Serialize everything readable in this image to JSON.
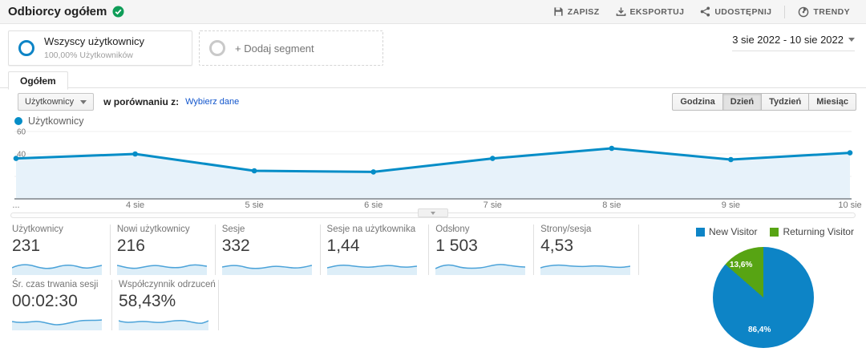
{
  "colors": {
    "accent_blue": "#058dc7",
    "pie_blue": "#0d84c6",
    "pie_green": "#57a413",
    "badge_green": "#0f9d58"
  },
  "header": {
    "title": "Odbiorcy ogółem",
    "badge": "verified-check",
    "save": "ZAPISZ",
    "export": "EKSPORTUJ",
    "share": "UDOSTĘPNIJ",
    "trends": "TRENDY"
  },
  "segments": {
    "all_users": {
      "title": "Wszyscy użytkownicy",
      "subtitle": "100,00% Użytkowników"
    },
    "add_segment": {
      "label": "+ Dodaj segment"
    }
  },
  "date_range": {
    "label": "3 sie 2022 - 10 sie 2022"
  },
  "tabs": {
    "overview": "Ogółem"
  },
  "controls": {
    "metric_dropdown": "Użytkownicy",
    "compare_label": "w porównaniu z:",
    "compare_link": "Wybierz dane",
    "granularity": [
      "Godzina",
      "Dzień",
      "Tydzień",
      "Miesiąc"
    ],
    "granularity_selected": "Dzień"
  },
  "chart_legend": {
    "series": "Użytkownicy"
  },
  "chart_data": [
    {
      "type": "line",
      "title": "Użytkownicy",
      "color": "#058dc7",
      "fill": "#e7f2fa",
      "x_labels": [
        "...",
        "4 sie",
        "5 sie",
        "6 sie",
        "7 sie",
        "8 sie",
        "9 sie",
        "10 sie"
      ],
      "values": [
        36,
        40,
        25,
        24,
        36,
        45,
        35,
        41
      ],
      "yticks": [
        20,
        40,
        60
      ],
      "ylim": [
        0,
        63
      ],
      "grid": true,
      "legend_position": "top-left"
    },
    {
      "type": "pie",
      "categories": [
        "New Visitor",
        "Returning Visitor"
      ],
      "values": [
        86.4,
        13.6
      ],
      "slice_labels": [
        "86,4%",
        "13,6%"
      ],
      "colors": [
        "#0d84c6",
        "#57a413"
      ],
      "legend_position": "top"
    }
  ],
  "scorecards": {
    "row1": [
      {
        "label": "Użytkownicy",
        "value": "231"
      },
      {
        "label": "Nowi użytkownicy",
        "value": "216"
      },
      {
        "label": "Sesje",
        "value": "332"
      },
      {
        "label": "Sesje na użytkownika",
        "value": "1,44"
      },
      {
        "label": "Odsłony",
        "value": "1 503"
      },
      {
        "label": "Strony/sesja",
        "value": "4,53"
      }
    ],
    "row2": [
      {
        "label": "Śr. czas trwania sesji",
        "value": "00:02:30"
      },
      {
        "label": "Współczynnik odrzuceń",
        "value": "58,43%"
      }
    ]
  }
}
